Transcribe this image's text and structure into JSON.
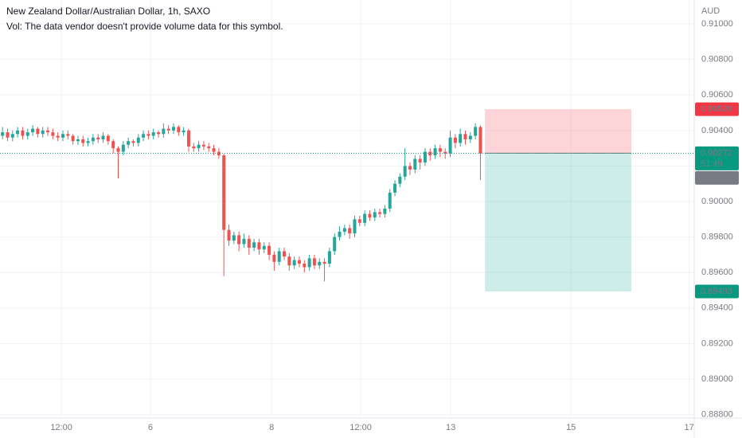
{
  "chart_data": {
    "type": "candlestick",
    "title": "New Zealand Dollar/Australian Dollar, 1h, SAXO",
    "subtitle": "Vol: The data vendor doesn't provide volume data for this symbol.",
    "currency": "AUD",
    "up_color": "#26a69a",
    "down_color": "#ef5350",
    "grid": true,
    "xlim": [
      0,
      138
    ],
    "xticks": [
      {
        "value": 12.2,
        "label": "12:00"
      },
      {
        "value": 29.9,
        "label": "6"
      },
      {
        "value": 54,
        "label": "8"
      },
      {
        "value": 71.7,
        "label": "12:00"
      },
      {
        "value": 89.6,
        "label": "13"
      },
      {
        "value": 113.5,
        "label": "15"
      },
      {
        "value": 137,
        "label": "17"
      }
    ],
    "ylim": [
      0.8878,
      0.91135
    ],
    "yticks": [
      {
        "value": 0.91,
        "label": "0.91000"
      },
      {
        "value": 0.908,
        "label": "0.90800"
      },
      {
        "value": 0.906,
        "label": "0.90600"
      },
      {
        "value": 0.904,
        "label": "0.90400"
      },
      {
        "value": 0.902,
        "label": "0.90200"
      },
      {
        "value": 0.9,
        "label": "0.90000"
      },
      {
        "value": 0.898,
        "label": "0.89800"
      },
      {
        "value": 0.896,
        "label": "0.89600"
      },
      {
        "value": 0.894,
        "label": "0.89400"
      },
      {
        "value": 0.892,
        "label": "0.89200"
      },
      {
        "value": 0.89,
        "label": "0.89000"
      },
      {
        "value": 0.888,
        "label": "0.88800"
      }
    ],
    "candles": [
      [
        0.9037,
        0.9042,
        0.9035,
        0.9039
      ],
      [
        0.9039,
        0.9041,
        0.9034,
        0.9036
      ],
      [
        0.9036,
        0.904,
        0.9034,
        0.9038
      ],
      [
        0.9038,
        0.9042,
        0.9036,
        0.904
      ],
      [
        0.904,
        0.9042,
        0.9035,
        0.9037
      ],
      [
        0.9037,
        0.9041,
        0.9035,
        0.9039
      ],
      [
        0.9039,
        0.9043,
        0.9037,
        0.9041
      ],
      [
        0.9041,
        0.9042,
        0.9036,
        0.9038
      ],
      [
        0.9038,
        0.9042,
        0.9036,
        0.904
      ],
      [
        0.904,
        0.9042,
        0.9037,
        0.9039
      ],
      [
        0.9039,
        0.9041,
        0.9035,
        0.9037
      ],
      [
        0.9037,
        0.9039,
        0.9034,
        0.9036
      ],
      [
        0.9036,
        0.904,
        0.9034,
        0.9038
      ],
      [
        0.9038,
        0.904,
        0.9035,
        0.9037
      ],
      [
        0.9037,
        0.9038,
        0.9032,
        0.9034
      ],
      [
        0.9034,
        0.9037,
        0.9032,
        0.9035
      ],
      [
        0.9035,
        0.9037,
        0.9031,
        0.9033
      ],
      [
        0.9033,
        0.9036,
        0.9031,
        0.9034
      ],
      [
        0.9034,
        0.9038,
        0.9032,
        0.9036
      ],
      [
        0.9036,
        0.9038,
        0.9033,
        0.9035
      ],
      [
        0.9035,
        0.9039,
        0.9033,
        0.9037
      ],
      [
        0.9037,
        0.9038,
        0.9032,
        0.9034
      ],
      [
        0.9034,
        0.9035,
        0.9027,
        0.903
      ],
      [
        0.903,
        0.9031,
        0.9013,
        0.9028
      ],
      [
        0.9028,
        0.9034,
        0.9026,
        0.9032
      ],
      [
        0.9032,
        0.9036,
        0.903,
        0.9034
      ],
      [
        0.9034,
        0.9035,
        0.9031,
        0.9033
      ],
      [
        0.9033,
        0.9038,
        0.9031,
        0.9036
      ],
      [
        0.9036,
        0.904,
        0.9034,
        0.9038
      ],
      [
        0.9038,
        0.904,
        0.9035,
        0.9037
      ],
      [
        0.9037,
        0.9041,
        0.9035,
        0.9039
      ],
      [
        0.9039,
        0.904,
        0.9036,
        0.9038
      ],
      [
        0.9038,
        0.9044,
        0.9036,
        0.9041
      ],
      [
        0.9041,
        0.9043,
        0.9038,
        0.904
      ],
      [
        0.904,
        0.9044,
        0.9038,
        0.9042
      ],
      [
        0.9042,
        0.9043,
        0.9037,
        0.9039
      ],
      [
        0.9039,
        0.9042,
        0.9037,
        0.904
      ],
      [
        0.904,
        0.9041,
        0.9028,
        0.9031
      ],
      [
        0.9031,
        0.9033,
        0.9028,
        0.903
      ],
      [
        0.903,
        0.9034,
        0.9028,
        0.9032
      ],
      [
        0.9032,
        0.9034,
        0.9029,
        0.9031
      ],
      [
        0.9031,
        0.9033,
        0.9028,
        0.903
      ],
      [
        0.903,
        0.9032,
        0.9026,
        0.9028
      ],
      [
        0.9028,
        0.903,
        0.9024,
        0.9026
      ],
      [
        0.9026,
        0.9027,
        0.8958,
        0.8984
      ],
      [
        0.8984,
        0.8987,
        0.8975,
        0.8978
      ],
      [
        0.8978,
        0.8983,
        0.8976,
        0.8981
      ],
      [
        0.8981,
        0.8983,
        0.8972,
        0.8976
      ],
      [
        0.8976,
        0.8982,
        0.8974,
        0.8979
      ],
      [
        0.8979,
        0.8981,
        0.897,
        0.8974
      ],
      [
        0.8974,
        0.8979,
        0.8972,
        0.8977
      ],
      [
        0.8977,
        0.8979,
        0.897,
        0.8973
      ],
      [
        0.8973,
        0.8977,
        0.8971,
        0.8975
      ],
      [
        0.8975,
        0.8977,
        0.8967,
        0.897
      ],
      [
        0.897,
        0.8972,
        0.8961,
        0.8966
      ],
      [
        0.8966,
        0.8974,
        0.8964,
        0.8972
      ],
      [
        0.8972,
        0.8974,
        0.8967,
        0.8969
      ],
      [
        0.8969,
        0.8971,
        0.8961,
        0.8964
      ],
      [
        0.8964,
        0.8969,
        0.8962,
        0.8967
      ],
      [
        0.8967,
        0.8969,
        0.8963,
        0.8965
      ],
      [
        0.8965,
        0.8967,
        0.896,
        0.8963
      ],
      [
        0.8963,
        0.897,
        0.8961,
        0.8968
      ],
      [
        0.8968,
        0.897,
        0.8962,
        0.8964
      ],
      [
        0.8964,
        0.8968,
        0.8962,
        0.8966
      ],
      [
        0.8966,
        0.8968,
        0.8955,
        0.8965
      ],
      [
        0.8965,
        0.8974,
        0.8963,
        0.8972
      ],
      [
        0.8972,
        0.8982,
        0.897,
        0.898
      ],
      [
        0.898,
        0.8986,
        0.8978,
        0.8983
      ],
      [
        0.8983,
        0.8987,
        0.8981,
        0.8985
      ],
      [
        0.8985,
        0.8987,
        0.8979,
        0.8982
      ],
      [
        0.8982,
        0.8992,
        0.898,
        0.899
      ],
      [
        0.899,
        0.8992,
        0.8986,
        0.8988
      ],
      [
        0.8988,
        0.8995,
        0.8986,
        0.8993
      ],
      [
        0.8993,
        0.8995,
        0.8989,
        0.8991
      ],
      [
        0.8991,
        0.8996,
        0.8989,
        0.8994
      ],
      [
        0.8994,
        0.8996,
        0.8991,
        0.8993
      ],
      [
        0.8993,
        0.8998,
        0.8991,
        0.8996
      ],
      [
        0.8996,
        0.9007,
        0.8994,
        0.9005
      ],
      [
        0.9005,
        0.9012,
        0.9003,
        0.901
      ],
      [
        0.901,
        0.9016,
        0.9008,
        0.9014
      ],
      [
        0.9014,
        0.903,
        0.9012,
        0.902
      ],
      [
        0.902,
        0.9022,
        0.9015,
        0.9018
      ],
      [
        0.9018,
        0.9026,
        0.9016,
        0.9024
      ],
      [
        0.9024,
        0.9026,
        0.9018,
        0.9022
      ],
      [
        0.9022,
        0.903,
        0.902,
        0.9028
      ],
      [
        0.9028,
        0.903,
        0.9023,
        0.9026
      ],
      [
        0.9026,
        0.9032,
        0.9024,
        0.903
      ],
      [
        0.903,
        0.9032,
        0.9025,
        0.9028
      ],
      [
        0.9028,
        0.903,
        0.9024,
        0.9027
      ],
      [
        0.9027,
        0.904,
        0.9025,
        0.9036
      ],
      [
        0.9036,
        0.9038,
        0.903,
        0.9033
      ],
      [
        0.9033,
        0.9041,
        0.9031,
        0.9038
      ],
      [
        0.9038,
        0.904,
        0.9032,
        0.9035
      ],
      [
        0.9035,
        0.9039,
        0.9033,
        0.9037
      ],
      [
        0.9037,
        0.9044,
        0.9035,
        0.9042
      ],
      [
        0.9042,
        0.9043,
        0.9012,
        0.9027
      ]
    ],
    "position": {
      "start": 96.4,
      "end": 125.5,
      "stop": 0.9052,
      "entry": 0.90272,
      "target": 0.89493,
      "stop_color": "#f7525f",
      "target_color": "#22ab94"
    },
    "price_tags": [
      {
        "value": 0.9052,
        "label": "0.90520",
        "color": "#f23645"
      },
      {
        "value": 0.90272,
        "label": "0.90272",
        "color": "#089981"
      },
      {
        "value": 0.90269,
        "label": "0.90269",
        "color": "#787b86"
      },
      {
        "value": 0.89493,
        "label": "0.89493",
        "color": "#089981"
      }
    ],
    "countdown": "51:49"
  }
}
